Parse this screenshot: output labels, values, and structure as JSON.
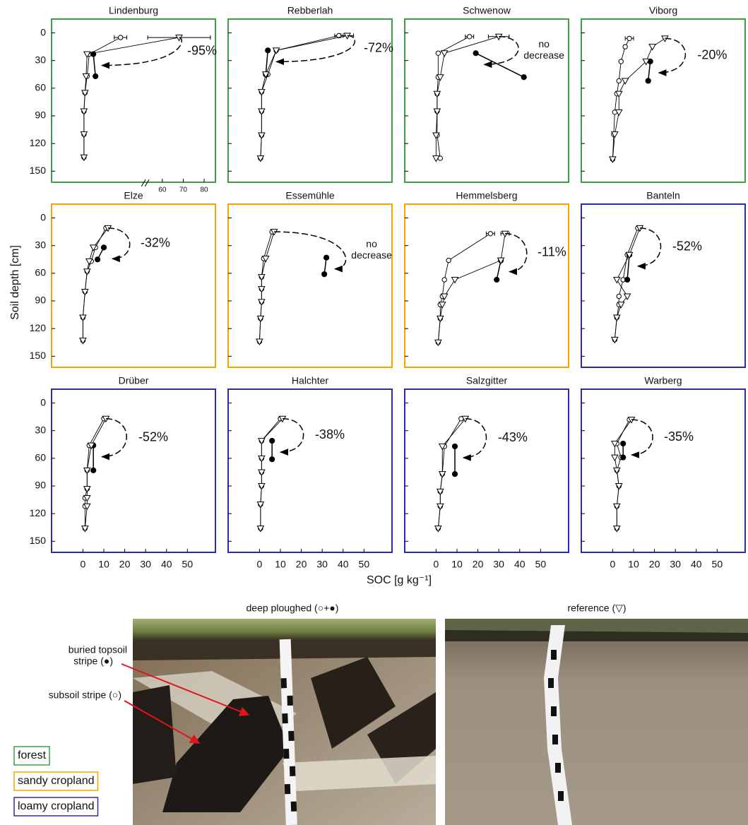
{
  "figure": {
    "ylabel": "Soil depth [cm]",
    "xlabel": "SOC [g kg⁻¹]"
  },
  "photos": {
    "left_title": "deep ploughed (○+●)",
    "right_title": "reference (▽)",
    "buried_topsoil": [
      "buried topsoil",
      "stripe (●)"
    ],
    "subsoil": "subsoil stripe (○)"
  },
  "legend": [
    {
      "label": "forest",
      "color": "#3f9f45"
    },
    {
      "label": "sandy cropland",
      "color": "#f0a500"
    },
    {
      "label": "loamy cropland",
      "color": "#2b2ba6"
    }
  ],
  "chart_data": [
    {
      "type": "profile",
      "title": "Lindenburg",
      "frame_color": "#3f9f45",
      "xlim": [
        -15,
        63.4
      ],
      "ylim": [
        -15,
        162
      ],
      "yticks": [
        0,
        30,
        60,
        90,
        120,
        150
      ],
      "xticks": [
        60,
        70,
        80
      ],
      "xbreak": [
        30,
        52
      ],
      "annotation": [
        "-95%"
      ],
      "series": [
        {
          "marker": "circle",
          "depths": [
            5,
            23,
            47,
            65,
            85,
            110,
            135
          ],
          "values": [
            18,
            3,
            2,
            1,
            0.5,
            0.5,
            0.5
          ],
          "errors": [
            3,
            null,
            null,
            null,
            null,
            null,
            null
          ]
        },
        {
          "marker": "dot",
          "depths": [
            23,
            47
          ],
          "values": [
            5,
            6
          ]
        },
        {
          "marker": "triangle",
          "depths": [
            5,
            23,
            47,
            65,
            85,
            110,
            135
          ],
          "values": [
            68,
            2,
            1.5,
            1,
            0.5,
            0.5,
            0.5
          ],
          "errors": [
            15,
            null,
            null,
            null,
            null,
            null,
            null
          ]
        }
      ]
    },
    {
      "type": "profile",
      "title": "Rebberlah",
      "frame_color": "#3f9f45",
      "xlim": [
        -15,
        63.4
      ],
      "ylim": [
        -15,
        162
      ],
      "yticks": [
        0,
        30,
        60,
        90,
        120,
        150
      ],
      "annotation": [
        "-72%"
      ],
      "series": [
        {
          "marker": "circle",
          "depths": [
            3,
            19,
            45,
            64,
            85,
            111,
            136
          ],
          "values": [
            38,
            8,
            4,
            1,
            1,
            1,
            0.5
          ],
          "errors": [
            2,
            null,
            null,
            null,
            null,
            null,
            null
          ]
        },
        {
          "marker": "dot",
          "depths": [
            19,
            45
          ],
          "values": [
            4,
            3
          ]
        },
        {
          "marker": "triangle",
          "depths": [
            3,
            19,
            45,
            64,
            85,
            111,
            136
          ],
          "values": [
            42,
            8,
            3,
            1,
            1,
            1,
            0.5
          ],
          "errors": [
            3,
            null,
            null,
            null,
            null,
            null,
            null
          ]
        }
      ]
    },
    {
      "type": "profile",
      "title": "Schwenow",
      "frame_color": "#3f9f45",
      "xlim": [
        -15,
        63.4
      ],
      "ylim": [
        -15,
        162
      ],
      "yticks": [
        0,
        30,
        60,
        90,
        120,
        150
      ],
      "annotation": [
        "no",
        "decrease"
      ],
      "series": [
        {
          "marker": "circle",
          "depths": [
            4,
            22,
            48,
            66,
            85,
            111,
            136
          ],
          "values": [
            16,
            1,
            1,
            0.5,
            0.5,
            0.5,
            2
          ],
          "errors": [
            2,
            null,
            null,
            null,
            null,
            null,
            null
          ]
        },
        {
          "marker": "dot",
          "depths": [
            22,
            48
          ],
          "values": [
            19,
            42
          ]
        },
        {
          "marker": "triangle",
          "depths": [
            4,
            22,
            48,
            66,
            85,
            111,
            136
          ],
          "values": [
            30,
            4,
            2,
            0.5,
            0.5,
            0,
            0
          ],
          "errors": [
            5,
            null,
            null,
            null,
            null,
            null,
            null
          ]
        }
      ]
    },
    {
      "type": "profile",
      "title": "Viborg",
      "frame_color": "#3f9f45",
      "xlim": [
        -15,
        63.4
      ],
      "ylim": [
        -15,
        162
      ],
      "yticks": [
        0,
        30,
        60,
        90,
        120,
        150
      ],
      "annotation": [
        "-20%"
      ],
      "series": [
        {
          "marker": "circle",
          "depths": [
            6,
            15,
            31,
            52,
            66,
            86,
            110,
            137
          ],
          "values": [
            8,
            6,
            4,
            3,
            2,
            1,
            0.5,
            0
          ],
          "errors": [
            2,
            null,
            null,
            null,
            null,
            null,
            null,
            null
          ]
        },
        {
          "marker": "dot",
          "depths": [
            31,
            52
          ],
          "values": [
            18,
            17
          ]
        },
        {
          "marker": "triangle",
          "depths": [
            6,
            15,
            31,
            52,
            66,
            86,
            110,
            137
          ],
          "values": [
            25,
            19,
            16,
            6,
            3,
            3,
            1,
            0
          ]
        }
      ]
    },
    {
      "type": "profile",
      "title": "Elze",
      "frame_color": "#f0a500",
      "xlim": [
        -15,
        63.4
      ],
      "ylim": [
        -15,
        162
      ],
      "yticks": [
        0,
        30,
        60,
        90,
        120,
        150
      ],
      "annotation": [
        "-32%"
      ],
      "series": [
        {
          "marker": "circle",
          "depths": [
            11,
            32,
            47,
            58,
            80,
            108,
            133
          ],
          "values": [
            11,
            6,
            4,
            2,
            1,
            0,
            0
          ]
        },
        {
          "marker": "dot",
          "depths": [
            32,
            45
          ],
          "values": [
            10,
            7
          ]
        },
        {
          "marker": "triangle",
          "depths": [
            11,
            32,
            47,
            58,
            80,
            108,
            133
          ],
          "values": [
            12,
            5,
            3,
            2,
            1,
            0,
            0
          ]
        }
      ]
    },
    {
      "type": "profile",
      "title": "Essemühle",
      "frame_color": "#f0a500",
      "xlim": [
        -15,
        63.4
      ],
      "ylim": [
        -15,
        162
      ],
      "yticks": [
        0,
        30,
        60,
        90,
        120,
        150
      ],
      "annotation": [
        "no",
        "decrease"
      ],
      "series": [
        {
          "marker": "circle",
          "depths": [
            15,
            44,
            64,
            77,
            91,
            109,
            134
          ],
          "values": [
            6,
            2,
            1,
            1,
            1,
            0.5,
            0
          ]
        },
        {
          "marker": "dot",
          "depths": [
            43,
            61
          ],
          "values": [
            32,
            31
          ]
        },
        {
          "marker": "triangle",
          "depths": [
            15,
            44,
            64,
            77,
            91,
            109,
            134
          ],
          "values": [
            7,
            3,
            1,
            1,
            1,
            0.5,
            0
          ]
        }
      ]
    },
    {
      "type": "profile",
      "title": "Hemmelsberg",
      "frame_color": "#f0a500",
      "xlim": [
        -15,
        63.4
      ],
      "ylim": [
        -15,
        162
      ],
      "yticks": [
        0,
        30,
        60,
        90,
        120,
        150
      ],
      "annotation": [
        "-11%"
      ],
      "series": [
        {
          "marker": "circle",
          "depths": [
            17,
            46,
            67,
            85,
            94,
            109,
            135
          ],
          "values": [
            26,
            6,
            4,
            3,
            2,
            2,
            1
          ],
          "errors": [
            2,
            null,
            null,
            null,
            null,
            null,
            null
          ]
        },
        {
          "marker": "dot",
          "depths": [
            46,
            67
          ],
          "values": [
            31,
            29
          ]
        },
        {
          "marker": "triangle",
          "depths": [
            17,
            46,
            67,
            85,
            94,
            109,
            135
          ],
          "values": [
            33,
            31,
            9,
            4,
            3,
            2,
            1
          ],
          "errors": [
            2,
            null,
            null,
            null,
            null,
            null,
            null
          ]
        }
      ]
    },
    {
      "type": "profile",
      "title": "Banteln",
      "frame_color": "#2b2ba6",
      "xlim": [
        -15,
        63.4
      ],
      "ylim": [
        -15,
        162
      ],
      "yticks": [
        0,
        30,
        60,
        90,
        120,
        150
      ],
      "annotation": [
        "-52%"
      ],
      "series": [
        {
          "marker": "circle",
          "depths": [
            11,
            40,
            67,
            85,
            94,
            108,
            132
          ],
          "values": [
            12,
            7,
            5,
            3,
            3,
            2,
            1
          ]
        },
        {
          "marker": "dot",
          "depths": [
            40,
            67
          ],
          "values": [
            8,
            7
          ]
        },
        {
          "marker": "triangle",
          "depths": [
            11,
            40,
            67,
            85,
            94,
            108,
            132
          ],
          "values": [
            13,
            8,
            2,
            7,
            4,
            2,
            1
          ]
        }
      ]
    },
    {
      "type": "profile",
      "title": "Drüber",
      "frame_color": "#2b2ba6",
      "xlim": [
        -15,
        63.4
      ],
      "ylim": [
        -15,
        162
      ],
      "yticks": [
        0,
        30,
        60,
        90,
        120,
        150
      ],
      "xticks": [
        0,
        10,
        20,
        30,
        40,
        50
      ],
      "annotation": [
        "-52%"
      ],
      "series": [
        {
          "marker": "circle",
          "depths": [
            17,
            46,
            73,
            93,
            103,
            112,
            136
          ],
          "values": [
            10,
            3,
            2,
            2,
            1,
            1,
            1
          ]
        },
        {
          "marker": "dot",
          "depths": [
            46,
            73
          ],
          "values": [
            5,
            5
          ]
        },
        {
          "marker": "triangle",
          "depths": [
            17,
            46,
            73,
            93,
            103,
            112,
            136
          ],
          "values": [
            11,
            4,
            2,
            2,
            2,
            2,
            1
          ]
        }
      ]
    },
    {
      "type": "profile",
      "title": "Halchter",
      "frame_color": "#2b2ba6",
      "xlim": [
        -15,
        63.4
      ],
      "ylim": [
        -15,
        162
      ],
      "yticks": [
        0,
        30,
        60,
        90,
        120,
        150
      ],
      "xticks": [
        0,
        10,
        20,
        30,
        40,
        50
      ],
      "annotation": [
        "-38%"
      ],
      "series": [
        {
          "marker": "circle",
          "depths": [
            17,
            41,
            60,
            75,
            90,
            110,
            136
          ],
          "values": [
            10,
            1,
            1,
            1,
            1,
            0.5,
            0.5
          ]
        },
        {
          "marker": "dot",
          "depths": [
            41,
            61
          ],
          "values": [
            6,
            6
          ]
        },
        {
          "marker": "triangle",
          "depths": [
            17,
            41,
            60,
            75,
            90,
            110,
            136
          ],
          "values": [
            11,
            1,
            1,
            1,
            1,
            0.5,
            0.5
          ]
        }
      ]
    },
    {
      "type": "profile",
      "title": "Salzgitter",
      "frame_color": "#2b2ba6",
      "xlim": [
        -15,
        63.4
      ],
      "ylim": [
        -15,
        162
      ],
      "yticks": [
        0,
        30,
        60,
        90,
        120,
        150
      ],
      "xticks": [
        0,
        10,
        20,
        30,
        40,
        50
      ],
      "annotation": [
        "-43%"
      ],
      "series": [
        {
          "marker": "circle",
          "depths": [
            17,
            47,
            77,
            96,
            112,
            136
          ],
          "values": [
            12,
            4,
            3,
            2,
            2,
            1
          ]
        },
        {
          "marker": "dot",
          "depths": [
            47,
            77
          ],
          "values": [
            9,
            9
          ]
        },
        {
          "marker": "triangle",
          "depths": [
            17,
            47,
            77,
            96,
            112,
            136
          ],
          "values": [
            14,
            3,
            3,
            2,
            2,
            1
          ]
        }
      ]
    },
    {
      "type": "profile",
      "title": "Warberg",
      "frame_color": "#2b2ba6",
      "xlim": [
        -15,
        63.4
      ],
      "ylim": [
        -15,
        162
      ],
      "yticks": [
        0,
        30,
        60,
        90,
        120,
        150
      ],
      "xticks": [
        0,
        10,
        20,
        30,
        40,
        50
      ],
      "annotation": [
        "-35%"
      ],
      "series": [
        {
          "marker": "circle",
          "depths": [
            18,
            44,
            59,
            73,
            90,
            112,
            136
          ],
          "values": [
            8,
            2,
            4,
            2,
            3,
            2,
            2
          ]
        },
        {
          "marker": "dot",
          "depths": [
            44,
            59
          ],
          "values": [
            5,
            5
          ]
        },
        {
          "marker": "triangle",
          "depths": [
            18,
            44,
            59,
            73,
            90,
            112,
            136
          ],
          "values": [
            9,
            1,
            1,
            2,
            3,
            2,
            2
          ]
        }
      ]
    }
  ]
}
